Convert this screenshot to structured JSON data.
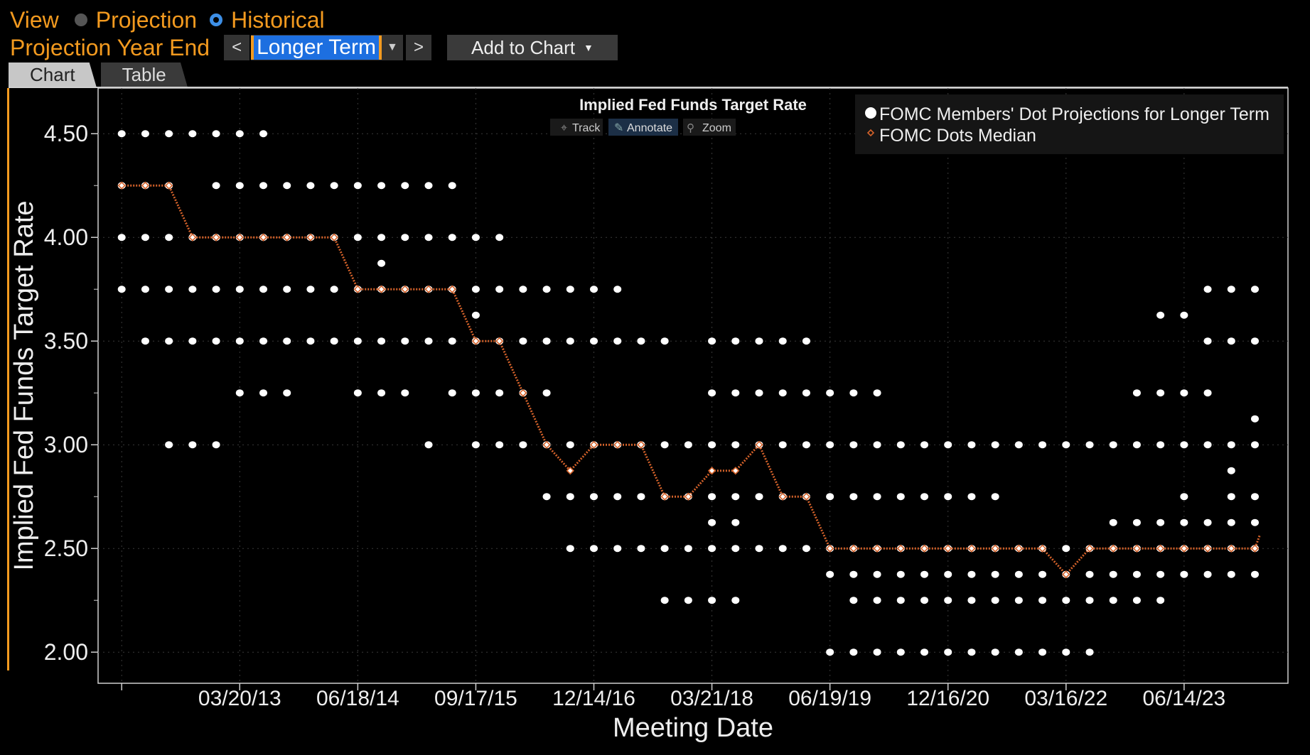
{
  "header": {
    "view_label": "View",
    "option_projection": "Projection",
    "option_historical": "Historical",
    "selected_option": "Historical",
    "year_end_label": "Projection Year End",
    "prev_arrow": "<",
    "next_arrow": ">",
    "select_value": "Longer Term",
    "add_to_chart": "Add to Chart"
  },
  "tabs": [
    {
      "label": "Chart",
      "active": true
    },
    {
      "label": "Table",
      "active": false
    }
  ],
  "toolbar": {
    "track": "Track",
    "annotate": "Annotate",
    "zoom": "Zoom"
  },
  "icons": {
    "track": "crosshair-icon",
    "annotate": "pencil-icon",
    "zoom": "magnifier-icon"
  },
  "colors": {
    "accent": "#f39a1f",
    "median": "#d4622a",
    "dots": "#ffffff",
    "selected": "#1d6fe0"
  },
  "chart_data": {
    "type": "scatter",
    "title": "Implied Fed Funds Target Rate",
    "xlabel": "Meeting Date",
    "ylabel": "Implied Fed Funds Target Rate",
    "x_unit": "FOMC meeting index",
    "x_tick_labels": [
      {
        "x": 5,
        "label": "03/20/13"
      },
      {
        "x": 10,
        "label": "06/18/14"
      },
      {
        "x": 15,
        "label": "09/17/15"
      },
      {
        "x": 20,
        "label": "12/14/16"
      },
      {
        "x": 25,
        "label": "03/21/18"
      },
      {
        "x": 30,
        "label": "06/19/19"
      },
      {
        "x": 35,
        "label": "12/16/20"
      },
      {
        "x": 40,
        "label": "03/16/22"
      },
      {
        "x": 45,
        "label": "06/14/23"
      }
    ],
    "yticks": [
      "2.00",
      "2.50",
      "3.00",
      "3.50",
      "4.00",
      "4.50"
    ],
    "ylim": [
      1.85,
      4.72
    ],
    "xlim": [
      -1,
      49.4
    ],
    "legend_position": "top-right",
    "grid": true,
    "series": [
      {
        "name": "FOMC Members' Dot Projections for Longer Term",
        "marker": "dot",
        "meetings": [
          {
            "x": 0,
            "y": [
              4.5,
              4.25,
              4.0,
              3.75
            ]
          },
          {
            "x": 1,
            "y": [
              4.5,
              4.25,
              4.0,
              3.75,
              3.5
            ]
          },
          {
            "x": 2,
            "y": [
              4.5,
              4.25,
              4.0,
              3.75,
              3.5,
              3.0
            ]
          },
          {
            "x": 3,
            "y": [
              4.5,
              4.0,
              3.75,
              3.5,
              3.0
            ]
          },
          {
            "x": 4,
            "y": [
              4.5,
              4.25,
              4.0,
              3.75,
              3.5,
              3.0
            ]
          },
          {
            "x": 5,
            "y": [
              4.5,
              4.25,
              4.0,
              3.75,
              3.5,
              3.25
            ]
          },
          {
            "x": 6,
            "y": [
              4.5,
              4.25,
              4.0,
              3.75,
              3.5,
              3.25
            ]
          },
          {
            "x": 7,
            "y": [
              4.25,
              4.0,
              3.75,
              3.5,
              3.25
            ]
          },
          {
            "x": 8,
            "y": [
              4.25,
              4.0,
              3.75,
              3.5
            ]
          },
          {
            "x": 9,
            "y": [
              4.25,
              4.0,
              3.75,
              3.5
            ]
          },
          {
            "x": 10,
            "y": [
              4.25,
              4.0,
              3.75,
              3.5,
              3.25
            ]
          },
          {
            "x": 11,
            "y": [
              4.25,
              4.0,
              3.875,
              3.75,
              3.5,
              3.25
            ]
          },
          {
            "x": 12,
            "y": [
              4.25,
              4.0,
              3.75,
              3.5,
              3.25
            ]
          },
          {
            "x": 13,
            "y": [
              4.25,
              4.0,
              3.75,
              3.5,
              3.0
            ]
          },
          {
            "x": 14,
            "y": [
              4.25,
              4.0,
              3.75,
              3.5,
              3.25
            ]
          },
          {
            "x": 15,
            "y": [
              4.0,
              3.75,
              3.625,
              3.5,
              3.25,
              3.0
            ]
          },
          {
            "x": 16,
            "y": [
              4.0,
              3.75,
              3.5,
              3.25,
              3.0
            ]
          },
          {
            "x": 17,
            "y": [
              3.75,
              3.5,
              3.25,
              3.0
            ]
          },
          {
            "x": 18,
            "y": [
              3.75,
              3.5,
              3.25,
              3.0,
              2.75
            ]
          },
          {
            "x": 19,
            "y": [
              3.75,
              3.5,
              3.0,
              2.75,
              2.5
            ]
          },
          {
            "x": 20,
            "y": [
              3.75,
              3.5,
              3.0,
              2.75,
              2.5
            ]
          },
          {
            "x": 21,
            "y": [
              3.75,
              3.5,
              3.0,
              2.75,
              2.5
            ]
          },
          {
            "x": 22,
            "y": [
              3.5,
              3.0,
              2.75,
              2.5
            ]
          },
          {
            "x": 23,
            "y": [
              3.5,
              3.0,
              2.75,
              2.5,
              2.25
            ]
          },
          {
            "x": 24,
            "y": [
              3.0,
              2.75,
              2.5,
              2.25
            ]
          },
          {
            "x": 25,
            "y": [
              3.5,
              3.25,
              3.0,
              2.75,
              2.625,
              2.5,
              2.25
            ]
          },
          {
            "x": 26,
            "y": [
              3.5,
              3.25,
              3.0,
              2.75,
              2.625,
              2.5,
              2.25
            ]
          },
          {
            "x": 27,
            "y": [
              3.5,
              3.25,
              3.0,
              2.75,
              2.5
            ]
          },
          {
            "x": 28,
            "y": [
              3.5,
              3.25,
              3.0,
              2.75,
              2.5
            ]
          },
          {
            "x": 29,
            "y": [
              3.5,
              3.25,
              3.0,
              2.75,
              2.5
            ]
          },
          {
            "x": 30,
            "y": [
              3.25,
              3.0,
              2.75,
              2.5,
              2.375,
              2.0
            ]
          },
          {
            "x": 31,
            "y": [
              3.25,
              3.0,
              2.75,
              2.5,
              2.375,
              2.25,
              2.0
            ]
          },
          {
            "x": 32,
            "y": [
              3.25,
              3.0,
              2.75,
              2.5,
              2.375,
              2.25,
              2.0
            ]
          },
          {
            "x": 33,
            "y": [
              3.0,
              2.75,
              2.5,
              2.375,
              2.25,
              2.0
            ]
          },
          {
            "x": 34,
            "y": [
              3.0,
              2.75,
              2.5,
              2.375,
              2.25,
              2.0
            ]
          },
          {
            "x": 35,
            "y": [
              3.0,
              2.75,
              2.5,
              2.375,
              2.25,
              2.0
            ]
          },
          {
            "x": 36,
            "y": [
              3.0,
              2.75,
              2.5,
              2.375,
              2.25,
              2.0
            ]
          },
          {
            "x": 37,
            "y": [
              3.0,
              2.75,
              2.5,
              2.375,
              2.25,
              2.0
            ]
          },
          {
            "x": 38,
            "y": [
              3.0,
              2.5,
              2.375,
              2.25,
              2.0
            ]
          },
          {
            "x": 39,
            "y": [
              3.0,
              2.5,
              2.375,
              2.25,
              2.0
            ]
          },
          {
            "x": 40,
            "y": [
              3.0,
              2.5,
              2.375,
              2.25,
              2.0
            ]
          },
          {
            "x": 41,
            "y": [
              3.0,
              2.5,
              2.375,
              2.25,
              2.0
            ]
          },
          {
            "x": 42,
            "y": [
              3.0,
              2.625,
              2.5,
              2.375,
              2.25
            ]
          },
          {
            "x": 43,
            "y": [
              3.25,
              3.0,
              2.625,
              2.5,
              2.375,
              2.25
            ]
          },
          {
            "x": 44,
            "y": [
              3.625,
              3.25,
              3.0,
              2.625,
              2.5,
              2.375,
              2.25
            ]
          },
          {
            "x": 45,
            "y": [
              3.625,
              3.25,
              3.0,
              2.75,
              2.625,
              2.5,
              2.375
            ]
          },
          {
            "x": 46,
            "y": [
              3.75,
              3.5,
              3.25,
              3.0,
              2.625,
              2.5,
              2.375
            ]
          },
          {
            "x": 47,
            "y": [
              3.75,
              3.5,
              3.0,
              2.875,
              2.75,
              2.625,
              2.5,
              2.375
            ]
          },
          {
            "x": 48,
            "y": [
              3.75,
              3.5,
              3.125,
              3.0,
              2.75,
              2.625,
              2.5,
              2.375
            ]
          }
        ]
      },
      {
        "name": "FOMC Dots Median",
        "marker": "diamond",
        "x": [
          0,
          1,
          2,
          3,
          4,
          5,
          6,
          7,
          8,
          9,
          10,
          11,
          12,
          13,
          14,
          15,
          16,
          17,
          18,
          19,
          20,
          21,
          22,
          23,
          24,
          25,
          26,
          27,
          28,
          29,
          30,
          31,
          32,
          33,
          34,
          35,
          36,
          37,
          38,
          39,
          40,
          41,
          42,
          43,
          44,
          45,
          46,
          47,
          48,
          48.2
        ],
        "y": [
          4.25,
          4.25,
          4.25,
          4.0,
          4.0,
          4.0,
          4.0,
          4.0,
          4.0,
          4.0,
          3.75,
          3.75,
          3.75,
          3.75,
          3.75,
          3.5,
          3.5,
          3.25,
          3.0,
          2.875,
          3.0,
          3.0,
          3.0,
          2.75,
          2.75,
          2.875,
          2.875,
          3.0,
          2.75,
          2.75,
          2.5,
          2.5,
          2.5,
          2.5,
          2.5,
          2.5,
          2.5,
          2.5,
          2.5,
          2.5,
          2.375,
          2.5,
          2.5,
          2.5,
          2.5,
          2.5,
          2.5,
          2.5,
          2.5,
          2.5625
        ]
      }
    ]
  }
}
